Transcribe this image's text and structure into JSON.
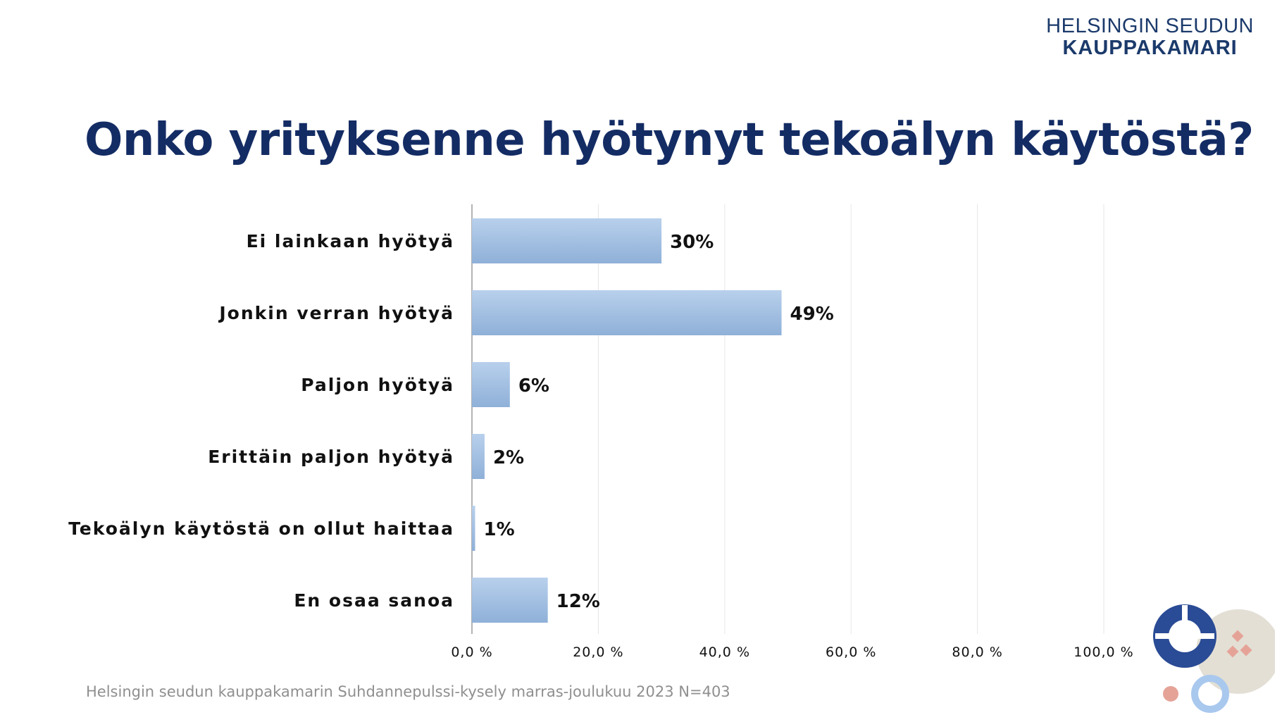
{
  "logo": {
    "line1": "HELSINGIN SEUDUN",
    "line2": "KAUPPAKAMARI"
  },
  "title": "Onko yrityksenne hyötynyt tekoälyn käytöstä?",
  "source": "Helsingin seudun kauppakamarin Suhdannepulssi-kysely marras-joulukuu 2023 N=403",
  "colors": {
    "title": "#142c64",
    "bar_light": "#b8d0ec",
    "bar_dark": "#8fb0d8",
    "grid": "#e6e6e6"
  },
  "chart_data": {
    "type": "bar",
    "orientation": "horizontal",
    "categories": [
      "Ei lainkaan hyötyä",
      "Jonkin verran hyötyä",
      "Paljon hyötyä",
      "Erittäin paljon hyötyä",
      "Tekoälyn käytöstä on ollut haittaa",
      "En osaa sanoa"
    ],
    "values": [
      30,
      49,
      6,
      2,
      0.5,
      12
    ],
    "value_labels": [
      "30%",
      "49%",
      "6%",
      "2%",
      "1%",
      "12%"
    ],
    "xlim": [
      0,
      100
    ],
    "x_ticks": [
      0,
      20,
      40,
      60,
      80,
      100
    ],
    "x_tick_labels": [
      "0,0 %",
      "20,0 %",
      "40,0 %",
      "60,0 %",
      "80,0 %",
      "100,0 %"
    ],
    "grid": true
  }
}
